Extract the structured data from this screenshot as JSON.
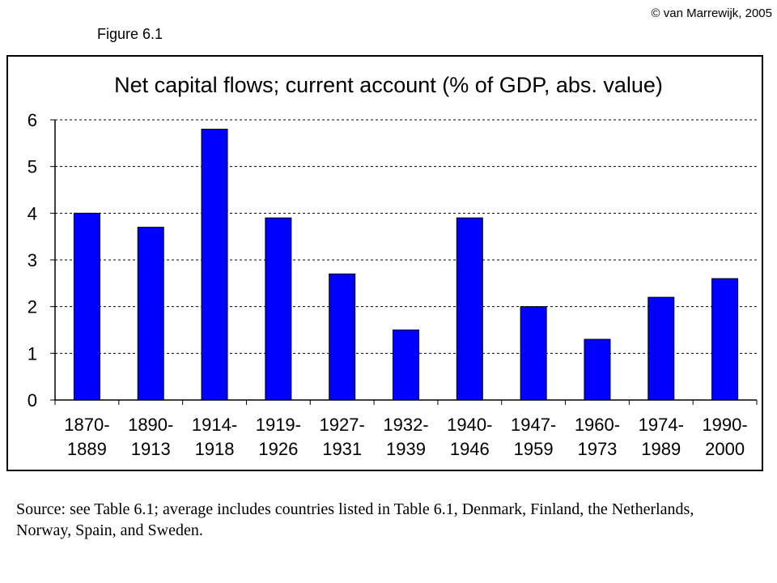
{
  "header": {
    "copyright": "© van Marrewijk, 2005",
    "figure_label": "Figure 6.1"
  },
  "source_note": "Source: see Table 6.1; average includes countries listed in Table 6.1, Denmark, Finland, the Netherlands, Norway,  Spain, and Sweden.",
  "colors": {
    "bar": "#0000ff",
    "bar_border": "#000000",
    "grid": "#000000"
  },
  "chart_data": {
    "type": "bar",
    "title": "Net capital flows; current account (% of GDP, abs. value)",
    "xlabel": "",
    "ylabel": "",
    "categories": [
      [
        "1870-",
        "1889"
      ],
      [
        "1890-",
        "1913"
      ],
      [
        "1914-",
        "1918"
      ],
      [
        "1919-",
        "1926"
      ],
      [
        "1927-",
        "1931"
      ],
      [
        "1932-",
        "1939"
      ],
      [
        "1940-",
        "1946"
      ],
      [
        "1947-",
        "1959"
      ],
      [
        "1960-",
        "1973"
      ],
      [
        "1974-",
        "1989"
      ],
      [
        "1990-",
        "2000"
      ]
    ],
    "values": [
      4.0,
      3.7,
      5.8,
      3.9,
      2.7,
      1.5,
      3.9,
      2.0,
      1.3,
      2.2,
      2.6
    ],
    "ylim": [
      0,
      6
    ],
    "yticks": [
      0,
      1,
      2,
      3,
      4,
      5,
      6
    ],
    "grid": "horizontal dashed",
    "legend": "none"
  }
}
